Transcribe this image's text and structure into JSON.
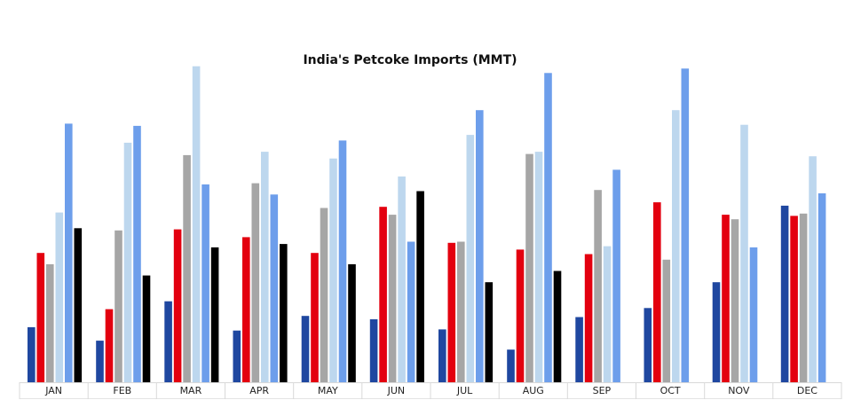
{
  "chart_data": {
    "type": "bar",
    "title": "India's Petcoke Imports (MMT)",
    "xlabel": "",
    "ylabel": "",
    "ylim": [
      0,
      2.8
    ],
    "grid": false,
    "legend": "none",
    "categories": [
      "JAN",
      "FEB",
      "MAR",
      "APR",
      "MAY",
      "JUN",
      "JUL",
      "AUG",
      "SEP",
      "OCT",
      "NOV",
      "DEC"
    ],
    "series": [
      {
        "color": "#1f47a0",
        "values": [
          0.49,
          0.37,
          0.72,
          0.46,
          0.59,
          0.56,
          0.47,
          0.29,
          0.58,
          0.66,
          0.89,
          1.57
        ]
      },
      {
        "color": "#e3000f",
        "values": [
          1.15,
          0.65,
          1.36,
          1.29,
          1.15,
          1.56,
          1.24,
          1.18,
          1.14,
          1.6,
          1.49,
          1.48
        ]
      },
      {
        "color": "#a6a6a6",
        "values": [
          1.05,
          1.35,
          2.02,
          1.77,
          1.55,
          1.49,
          1.25,
          2.03,
          1.71,
          1.09,
          1.45,
          1.5
        ]
      },
      {
        "color": "#bdd7ee",
        "values": [
          1.51,
          2.13,
          2.81,
          2.05,
          1.99,
          1.83,
          2.2,
          2.05,
          1.21,
          2.42,
          2.29,
          2.01
        ]
      },
      {
        "color": "#6d9eeb",
        "values": [
          2.3,
          2.28,
          1.76,
          1.67,
          2.15,
          1.25,
          2.42,
          2.75,
          1.89,
          2.79,
          1.2,
          1.68
        ]
      },
      {
        "color": "#000000",
        "values": [
          1.37,
          0.95,
          1.2,
          1.23,
          1.05,
          1.7,
          0.89,
          0.99,
          null,
          null,
          null,
          null
        ]
      }
    ]
  }
}
